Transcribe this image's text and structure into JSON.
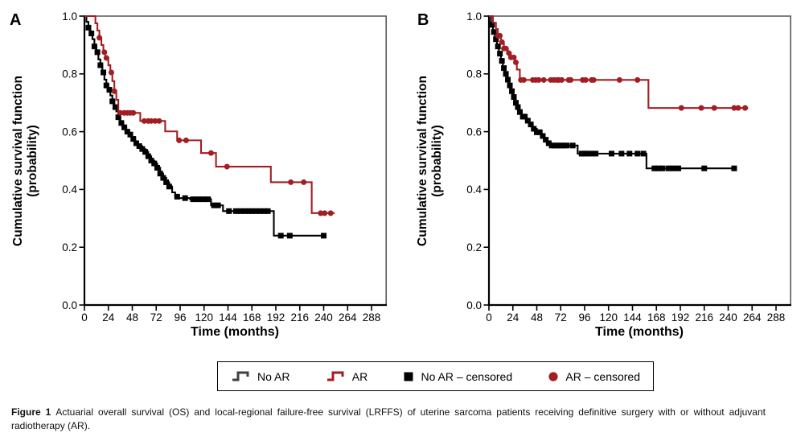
{
  "figure": {
    "caption_label": "Figure 1",
    "caption_text": "Actuarial overall survival (OS) and local-regional failure-free survival (LRFFS) of uterine sarcoma patients receiving definitive surgery with or without adjuvant radiotherapy (AR)."
  },
  "colors": {
    "no_ar": "#000000",
    "ar": "#a21e22",
    "frame_gray": "#595959",
    "legend_step_gray": "#3f3f3f"
  },
  "legend": {
    "items": [
      {
        "label": "No AR",
        "symbol": "step-line",
        "color": "#3f3f3f"
      },
      {
        "label": "AR",
        "symbol": "step-line",
        "color": "#a21e22"
      },
      {
        "label": "No AR – censored",
        "symbol": "filled-square",
        "color": "#000000"
      },
      {
        "label": "AR – censored",
        "symbol": "filled-circle",
        "color": "#a21e22"
      }
    ]
  },
  "chart_data": [
    {
      "type": "line",
      "panel": "A",
      "subtitle": "Overall survival (OS)",
      "xlabel": "Time (months)",
      "ylabel_lines": [
        "Cumulative survival function",
        "(probability)"
      ],
      "xlim": [
        0,
        302
      ],
      "ylim": [
        0.0,
        1.0
      ],
      "xticks": [
        0,
        24,
        48,
        72,
        96,
        120,
        144,
        168,
        192,
        216,
        240,
        264,
        288
      ],
      "yticks": [
        0.0,
        0.2,
        0.4,
        0.6,
        0.8,
        1.0
      ],
      "grid": false,
      "series": [
        {
          "name": "No AR",
          "color": "#000000",
          "marker": "square",
          "steps": [
            [
              0,
              1.0
            ],
            [
              2,
              0.98
            ],
            [
              4,
              0.96
            ],
            [
              6,
              0.94
            ],
            [
              8,
              0.92
            ],
            [
              10,
              0.895
            ],
            [
              12,
              0.875
            ],
            [
              14,
              0.85
            ],
            [
              16,
              0.83
            ],
            [
              18,
              0.805
            ],
            [
              20,
              0.78
            ],
            [
              22,
              0.76
            ],
            [
              24,
              0.745
            ],
            [
              26,
              0.725
            ],
            [
              28,
              0.705
            ],
            [
              30,
              0.685
            ],
            [
              32,
              0.67
            ],
            [
              34,
              0.65
            ],
            [
              36,
              0.63
            ],
            [
              39,
              0.615
            ],
            [
              42,
              0.6
            ],
            [
              45,
              0.59
            ],
            [
              48,
              0.575
            ],
            [
              51,
              0.56
            ],
            [
              54,
              0.55
            ],
            [
              58,
              0.54
            ],
            [
              61,
              0.53
            ],
            [
              64,
              0.515
            ],
            [
              67,
              0.5
            ],
            [
              70,
              0.49
            ],
            [
              73,
              0.475
            ],
            [
              76,
              0.455
            ],
            [
              79,
              0.44
            ],
            [
              82,
              0.425
            ],
            [
              85,
              0.41
            ],
            [
              88,
              0.39
            ],
            [
              91,
              0.375
            ],
            [
              95,
              0.37
            ],
            [
              106,
              0.366
            ],
            [
              127,
              0.345
            ],
            [
              139,
              0.325
            ],
            [
              190,
              0.24
            ]
          ],
          "end_t": 242,
          "censor_times": [
            4,
            7,
            10,
            13,
            16,
            19,
            22,
            25,
            28,
            31,
            34,
            37,
            40,
            43,
            46,
            49,
            52,
            55,
            58,
            61,
            64,
            67,
            70,
            73,
            76,
            79,
            82,
            85,
            93,
            101,
            109,
            114,
            119,
            124,
            130,
            134,
            145,
            152,
            157,
            161,
            165,
            168,
            172,
            176,
            180,
            184,
            197,
            206,
            240
          ]
        },
        {
          "name": "AR",
          "color": "#a21e22",
          "marker": "circle",
          "steps": [
            [
              0,
              1.0
            ],
            [
              11,
              0.975
            ],
            [
              13,
              0.95
            ],
            [
              15,
              0.925
            ],
            [
              17,
              0.9
            ],
            [
              19,
              0.875
            ],
            [
              21,
              0.855
            ],
            [
              24,
              0.83
            ],
            [
              26,
              0.805
            ],
            [
              28,
              0.775
            ],
            [
              30,
              0.74
            ],
            [
              32,
              0.71
            ],
            [
              34,
              0.665
            ],
            [
              56,
              0.637
            ],
            [
              81,
              0.601
            ],
            [
              93,
              0.57
            ],
            [
              117,
              0.526
            ],
            [
              132,
              0.479
            ],
            [
              187,
              0.425
            ],
            [
              228,
              0.318
            ]
          ],
          "end_t": 251,
          "censor_times": [
            15,
            20,
            22,
            27,
            30,
            36,
            40,
            43,
            46,
            49,
            60,
            64,
            67,
            71,
            75,
            95,
            102,
            127,
            143,
            207,
            220,
            237,
            241,
            247
          ]
        }
      ]
    },
    {
      "type": "line",
      "panel": "B",
      "subtitle": "Local-regional failure-free survival (LRFFS)",
      "xlabel": "Time (months)",
      "ylabel_lines": [
        "Cumulative survival function",
        "(probability)"
      ],
      "xlim": [
        0,
        302
      ],
      "ylim": [
        0.0,
        1.0
      ],
      "xticks": [
        0,
        24,
        48,
        72,
        96,
        120,
        144,
        168,
        192,
        216,
        240,
        264,
        288
      ],
      "yticks": [
        0.0,
        0.2,
        0.4,
        0.6,
        0.8,
        1.0
      ],
      "grid": false,
      "series": [
        {
          "name": "No AR",
          "color": "#000000",
          "marker": "square",
          "steps": [
            [
              0,
              1.0
            ],
            [
              2,
              0.97
            ],
            [
              4,
              0.945
            ],
            [
              6,
              0.92
            ],
            [
              8,
              0.895
            ],
            [
              10,
              0.87
            ],
            [
              12,
              0.845
            ],
            [
              14,
              0.82
            ],
            [
              16,
              0.8
            ],
            [
              18,
              0.78
            ],
            [
              20,
              0.76
            ],
            [
              22,
              0.74
            ],
            [
              24,
              0.72
            ],
            [
              26,
              0.7
            ],
            [
              28,
              0.685
            ],
            [
              30,
              0.668
            ],
            [
              33,
              0.652
            ],
            [
              37,
              0.638
            ],
            [
              40,
              0.625
            ],
            [
              44,
              0.61
            ],
            [
              48,
              0.598
            ],
            [
              52,
              0.585
            ],
            [
              55,
              0.572
            ],
            [
              58,
              0.56
            ],
            [
              62,
              0.552
            ],
            [
              89,
              0.524
            ],
            [
              158,
              0.473
            ]
          ],
          "end_t": 246,
          "censor_times": [
            3,
            5,
            7,
            9,
            11,
            13,
            15,
            17,
            19,
            21,
            23,
            25,
            27,
            29,
            31,
            34,
            36,
            39,
            42,
            45,
            48,
            51,
            54,
            57,
            60,
            63,
            66,
            69,
            72,
            75,
            78,
            84,
            93,
            96,
            99,
            103,
            107,
            123,
            133,
            141,
            149,
            155,
            166,
            170,
            174,
            180,
            185,
            190,
            216,
            246
          ]
        },
        {
          "name": "AR",
          "color": "#a21e22",
          "marker": "circle",
          "steps": [
            [
              0,
              1.0
            ],
            [
              4,
              0.977
            ],
            [
              7,
              0.955
            ],
            [
              9,
              0.932
            ],
            [
              12,
              0.91
            ],
            [
              15,
              0.888
            ],
            [
              19,
              0.872
            ],
            [
              22,
              0.857
            ],
            [
              26,
              0.84
            ],
            [
              28,
              0.815
            ],
            [
              31,
              0.779
            ],
            [
              160,
              0.682
            ]
          ],
          "end_t": 260,
          "censor_times": [
            9,
            11,
            13,
            15,
            17,
            20,
            22,
            25,
            27,
            32,
            35,
            44,
            47,
            50,
            55,
            62,
            65,
            68,
            70,
            73,
            80,
            82,
            94,
            97,
            103,
            105,
            131,
            149,
            193,
            213,
            226,
            246,
            250,
            257
          ]
        }
      ]
    }
  ]
}
